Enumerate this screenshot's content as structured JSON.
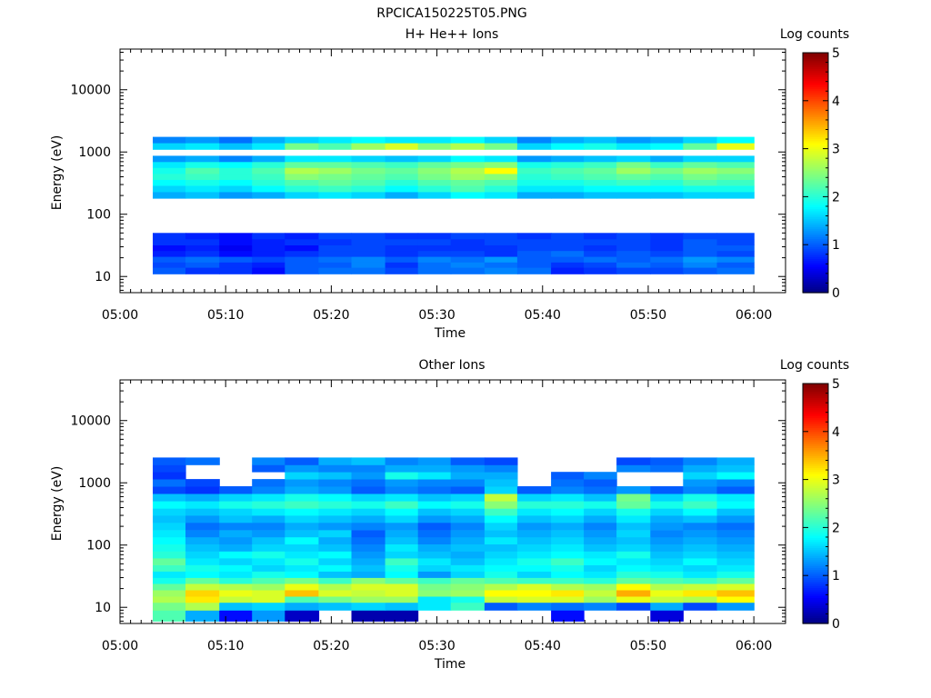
{
  "figure_title": "RPCICA150225T05.PNG",
  "chart_data": [
    {
      "type": "heatmap",
      "title": "H+ He++ Ions",
      "xlabel": "Time",
      "ylabel": "Energy (eV)",
      "colorbar_label": "Log counts",
      "colorbar_ticks": [
        "0",
        "1",
        "2",
        "3",
        "4",
        "5"
      ],
      "colorbar_range": [
        0,
        5
      ],
      "yscale": "log",
      "ylim": [
        5.5,
        45000
      ],
      "y_ticks": [
        {
          "value": 10,
          "label": "10"
        },
        {
          "value": 100,
          "label": "100"
        },
        {
          "value": 1000,
          "label": "1000"
        },
        {
          "value": 10000,
          "label": "10000"
        }
      ],
      "x_ticks": [
        "05:00",
        "05:10",
        "05:20",
        "05:30",
        "05:40",
        "05:50",
        "06:00"
      ],
      "x_start_min": 0,
      "x_end_min": 63,
      "time_bins_min": [
        [
          3.1,
          6.2
        ],
        [
          6.2,
          9.4
        ],
        [
          9.4,
          12.5
        ],
        [
          12.5,
          15.6
        ],
        [
          15.6,
          18.8
        ],
        [
          18.8,
          21.9
        ],
        [
          21.9,
          25.1
        ],
        [
          25.1,
          28.2
        ],
        [
          28.2,
          31.3
        ],
        [
          31.3,
          34.5
        ],
        [
          34.5,
          37.6
        ],
        [
          37.6,
          40.8
        ],
        [
          40.8,
          43.9
        ],
        [
          43.9,
          47.0
        ],
        [
          47.0,
          50.2
        ],
        [
          50.2,
          53.3
        ],
        [
          53.3,
          56.5
        ],
        [
          56.5,
          60.0
        ]
      ],
      "energy_bins_ev": [
        [
          11,
          14
        ],
        [
          14,
          17
        ],
        [
          17,
          21
        ],
        [
          21,
          26
        ],
        [
          26,
          32
        ],
        [
          32,
          40
        ],
        [
          40,
          50
        ],
        [
          180,
          230
        ],
        [
          230,
          290
        ],
        [
          290,
          360
        ],
        [
          360,
          450
        ],
        [
          450,
          560
        ],
        [
          560,
          700
        ],
        [
          700,
          870
        ],
        [
          1100,
          1400
        ],
        [
          1400,
          1750
        ]
      ],
      "values": [
        [
          1.0,
          0.8,
          0.8,
          0.6,
          1.0,
          1.1,
          1.1,
          0.9,
          1.1,
          1.1,
          1.2,
          1.1,
          0.7,
          0.8,
          0.9,
          0.9,
          1.0,
          1.1
        ],
        [
          0.9,
          1.0,
          0.8,
          0.7,
          1.0,
          1.0,
          1.2,
          0.8,
          1.1,
          1.2,
          1.1,
          1.0,
          0.8,
          0.9,
          1.1,
          1.0,
          1.2,
          1.0
        ],
        [
          1.0,
          1.1,
          1.0,
          0.9,
          1.0,
          1.1,
          1.2,
          1.0,
          1.2,
          1.1,
          1.3,
          1.0,
          1.0,
          1.1,
          1.0,
          1.1,
          1.3,
          1.2
        ],
        [
          0.7,
          0.8,
          0.6,
          0.7,
          0.8,
          0.9,
          0.9,
          0.8,
          0.9,
          0.9,
          0.8,
          1.0,
          1.1,
          0.9,
          1.0,
          0.9,
          1.0,
          0.9
        ],
        [
          0.6,
          0.7,
          0.5,
          0.7,
          0.6,
          0.9,
          0.9,
          0.8,
          0.8,
          0.8,
          0.8,
          0.9,
          0.9,
          0.8,
          0.9,
          0.8,
          1.0,
          1.0
        ],
        [
          0.8,
          0.8,
          0.6,
          0.7,
          0.8,
          0.8,
          0.9,
          0.9,
          0.9,
          0.8,
          0.9,
          0.9,
          0.9,
          0.9,
          0.9,
          0.8,
          1.0,
          0.9
        ],
        [
          0.8,
          0.7,
          0.6,
          0.8,
          0.7,
          0.9,
          0.9,
          0.8,
          0.8,
          0.9,
          0.9,
          0.8,
          0.9,
          0.8,
          0.9,
          0.8,
          0.9,
          0.9
        ],
        [
          1.4,
          1.5,
          1.3,
          1.4,
          1.6,
          1.7,
          1.6,
          1.4,
          1.6,
          1.8,
          1.7,
          1.4,
          1.4,
          1.5,
          1.5,
          1.5,
          1.6,
          1.6
        ],
        [
          1.6,
          1.7,
          1.6,
          1.8,
          2.0,
          2.1,
          2.0,
          1.8,
          2.0,
          2.2,
          2.0,
          1.7,
          1.7,
          1.8,
          1.8,
          1.8,
          1.9,
          1.9
        ],
        [
          1.8,
          1.9,
          1.8,
          2.0,
          2.2,
          2.3,
          2.2,
          2.0,
          2.2,
          2.3,
          2.2,
          1.9,
          1.9,
          2.0,
          2.1,
          2.0,
          2.2,
          2.1
        ],
        [
          2.0,
          2.1,
          2.0,
          2.1,
          2.5,
          2.4,
          2.3,
          2.2,
          2.4,
          2.6,
          2.5,
          2.0,
          2.1,
          2.2,
          2.3,
          2.2,
          2.4,
          2.3
        ],
        [
          1.9,
          2.2,
          2.0,
          2.2,
          2.7,
          2.6,
          2.4,
          2.3,
          2.5,
          2.7,
          3.1,
          2.1,
          2.2,
          2.3,
          2.6,
          2.4,
          2.6,
          2.5
        ],
        [
          1.7,
          1.9,
          1.8,
          2.0,
          2.3,
          2.3,
          2.2,
          2.1,
          2.3,
          2.4,
          2.5,
          1.9,
          2.0,
          2.1,
          2.4,
          2.1,
          2.3,
          2.2
        ],
        [
          1.3,
          1.4,
          1.2,
          1.4,
          1.7,
          1.7,
          1.6,
          1.5,
          1.6,
          1.8,
          1.7,
          1.3,
          1.4,
          1.5,
          1.6,
          1.4,
          1.6,
          1.6
        ],
        [
          1.6,
          1.7,
          1.5,
          1.7,
          2.4,
          2.2,
          2.6,
          2.9,
          2.5,
          2.7,
          2.4,
          1.6,
          1.8,
          1.9,
          1.7,
          1.8,
          2.3,
          3.0
        ],
        [
          1.2,
          1.3,
          1.1,
          1.4,
          1.6,
          1.7,
          1.8,
          1.7,
          1.7,
          1.8,
          1.6,
          1.2,
          1.4,
          1.5,
          1.3,
          1.4,
          1.6,
          1.8
        ]
      ]
    },
    {
      "type": "heatmap",
      "title": "Other Ions",
      "xlabel": "Time",
      "ylabel": "Energy (eV)",
      "colorbar_label": "Log counts",
      "colorbar_ticks": [
        "0",
        "1",
        "2",
        "3",
        "4",
        "5"
      ],
      "colorbar_range": [
        0,
        5
      ],
      "yscale": "log",
      "ylim": [
        5.5,
        45000
      ],
      "y_ticks": [
        {
          "value": 10,
          "label": "10"
        },
        {
          "value": 100,
          "label": "100"
        },
        {
          "value": 1000,
          "label": "1000"
        },
        {
          "value": 10000,
          "label": "10000"
        }
      ],
      "x_ticks": [
        "05:00",
        "05:10",
        "05:20",
        "05:30",
        "05:40",
        "05:50",
        "06:00"
      ],
      "x_start_min": 0,
      "x_end_min": 63,
      "time_bins_min": [
        [
          3.1,
          6.2
        ],
        [
          6.2,
          9.4
        ],
        [
          9.4,
          12.5
        ],
        [
          12.5,
          15.6
        ],
        [
          15.6,
          18.8
        ],
        [
          18.8,
          21.9
        ],
        [
          21.9,
          25.1
        ],
        [
          25.1,
          28.2
        ],
        [
          28.2,
          31.3
        ],
        [
          31.3,
          34.5
        ],
        [
          34.5,
          37.6
        ],
        [
          37.6,
          40.8
        ],
        [
          40.8,
          43.9
        ],
        [
          43.9,
          47.0
        ],
        [
          47.0,
          50.2
        ],
        [
          50.2,
          53.3
        ],
        [
          53.3,
          56.5
        ],
        [
          56.5,
          60.0
        ]
      ],
      "energy_bins_ev": [
        [
          6,
          9
        ],
        [
          9,
          12
        ],
        [
          12,
          15
        ],
        [
          15,
          19
        ],
        [
          19,
          24
        ],
        [
          24,
          30
        ],
        [
          30,
          38
        ],
        [
          38,
          48
        ],
        [
          48,
          62
        ],
        [
          62,
          80
        ],
        [
          80,
          104
        ],
        [
          104,
          135
        ],
        [
          135,
          175
        ],
        [
          175,
          230
        ],
        [
          230,
          300
        ],
        [
          300,
          390
        ],
        [
          390,
          510
        ],
        [
          510,
          670
        ],
        [
          670,
          880
        ],
        [
          880,
          1150
        ],
        [
          1150,
          1500
        ],
        [
          1500,
          1950
        ],
        [
          1950,
          2550
        ]
      ],
      "values": [
        [
          2.2,
          1.4,
          0.6,
          1.3,
          0.3,
          null,
          0.2,
          0.2,
          null,
          null,
          null,
          null,
          0.6,
          null,
          null,
          0.4,
          null,
          null
        ],
        [
          2.4,
          2.7,
          1.5,
          1.6,
          1.4,
          1.5,
          1.6,
          1.5,
          1.7,
          2.1,
          1.0,
          1.2,
          1.1,
          1.2,
          0.9,
          1.4,
          0.9,
          1.3
        ],
        [
          2.7,
          3.2,
          2.8,
          2.9,
          2.2,
          2.4,
          2.6,
          2.6,
          1.7,
          1.9,
          2.8,
          2.9,
          2.9,
          2.6,
          3.0,
          2.8,
          2.7,
          3.1
        ],
        [
          2.6,
          3.3,
          3.0,
          2.9,
          3.4,
          2.9,
          2.8,
          2.9,
          2.5,
          2.6,
          3.1,
          3.1,
          3.2,
          2.8,
          3.5,
          3.0,
          3.2,
          3.4
        ],
        [
          2.3,
          2.8,
          2.7,
          2.6,
          3.0,
          2.7,
          2.9,
          2.9,
          2.4,
          2.5,
          2.7,
          2.9,
          2.7,
          2.6,
          3.1,
          2.7,
          2.8,
          2.9
        ],
        [
          1.9,
          2.3,
          2.0,
          2.2,
          2.4,
          2.1,
          2.5,
          2.3,
          2.1,
          2.3,
          2.2,
          2.1,
          2.1,
          2.0,
          2.3,
          2.2,
          2.1,
          2.3
        ],
        [
          1.7,
          1.8,
          1.7,
          1.9,
          1.8,
          1.5,
          1.4,
          1.8,
          1.3,
          1.6,
          1.9,
          1.6,
          1.8,
          1.7,
          2.0,
          1.9,
          1.7,
          1.9
        ],
        [
          2.1,
          1.9,
          1.8,
          1.6,
          1.7,
          1.8,
          1.5,
          1.9,
          1.6,
          1.7,
          1.8,
          1.8,
          1.9,
          1.6,
          1.8,
          1.7,
          1.6,
          1.7
        ],
        [
          2.3,
          1.7,
          1.6,
          1.7,
          1.9,
          1.6,
          1.4,
          2.1,
          1.7,
          1.5,
          1.7,
          1.9,
          2.1,
          1.8,
          1.7,
          1.6,
          1.8,
          1.6
        ],
        [
          2.0,
          1.6,
          1.8,
          1.9,
          1.7,
          1.8,
          1.3,
          1.6,
          1.5,
          1.4,
          1.6,
          1.7,
          1.8,
          1.7,
          1.9,
          1.5,
          1.6,
          1.5
        ],
        [
          1.9,
          1.5,
          1.4,
          1.6,
          1.6,
          1.5,
          1.2,
          1.7,
          1.4,
          1.5,
          1.5,
          1.6,
          1.7,
          1.5,
          1.6,
          1.4,
          1.5,
          1.4
        ],
        [
          1.8,
          1.4,
          1.3,
          1.5,
          1.8,
          1.4,
          1.1,
          1.5,
          1.2,
          1.4,
          1.7,
          1.5,
          1.6,
          1.4,
          1.5,
          1.3,
          1.4,
          1.3
        ],
        [
          1.7,
          1.2,
          1.4,
          1.3,
          1.5,
          1.6,
          1.0,
          1.4,
          1.1,
          1.3,
          1.5,
          1.4,
          1.5,
          1.3,
          1.6,
          1.2,
          1.3,
          1.2
        ],
        [
          1.6,
          1.1,
          1.2,
          1.2,
          1.4,
          1.3,
          1.2,
          1.3,
          1.0,
          1.2,
          1.6,
          1.3,
          1.4,
          1.2,
          1.5,
          1.3,
          1.2,
          1.1
        ],
        [
          1.5,
          1.3,
          1.5,
          1.4,
          1.6,
          1.5,
          1.4,
          1.6,
          1.3,
          1.4,
          1.8,
          1.5,
          1.6,
          1.4,
          1.7,
          1.4,
          1.5,
          1.3
        ],
        [
          1.6,
          1.5,
          1.6,
          1.7,
          1.8,
          1.7,
          1.6,
          1.8,
          1.5,
          1.6,
          2.1,
          1.7,
          1.8,
          1.6,
          1.9,
          1.6,
          1.8,
          1.5
        ],
        [
          1.8,
          1.7,
          1.9,
          2.0,
          2.1,
          2.0,
          1.9,
          2.1,
          1.8,
          1.9,
          2.5,
          2.0,
          2.0,
          1.9,
          2.3,
          1.9,
          2.1,
          1.8
        ],
        [
          1.5,
          1.4,
          1.6,
          1.7,
          1.9,
          1.8,
          1.6,
          1.7,
          1.5,
          1.6,
          2.8,
          1.6,
          1.7,
          1.5,
          2.4,
          1.6,
          1.9,
          1.7
        ],
        [
          0.9,
          0.8,
          1.0,
          1.2,
          1.4,
          1.3,
          1.0,
          1.2,
          1.1,
          1.0,
          1.6,
          1.0,
          1.2,
          1.1,
          1.3,
          1.0,
          1.2,
          1.0
        ],
        [
          1.1,
          0.9,
          null,
          1.1,
          1.3,
          1.2,
          1.1,
          1.3,
          1.2,
          1.2,
          1.5,
          null,
          1.1,
          1.0,
          null,
          null,
          1.3,
          1.2
        ],
        [
          0.8,
          null,
          null,
          null,
          1.6,
          1.5,
          1.3,
          1.9,
          1.7,
          1.4,
          1.4,
          null,
          1.0,
          1.2,
          null,
          null,
          1.6,
          1.8
        ],
        [
          0.9,
          null,
          null,
          1.0,
          1.3,
          1.2,
          1.2,
          1.4,
          1.4,
          1.3,
          1.2,
          null,
          null,
          null,
          1.2,
          1.1,
          1.4,
          1.5
        ],
        [
          1.0,
          1.1,
          null,
          1.2,
          1.0,
          1.4,
          1.5,
          1.2,
          1.3,
          1.0,
          0.9,
          null,
          null,
          null,
          0.9,
          1.0,
          1.2,
          1.4
        ]
      ]
    }
  ]
}
